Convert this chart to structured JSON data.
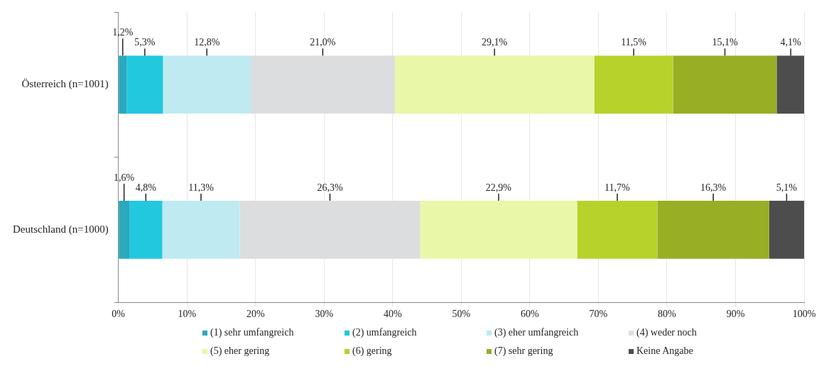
{
  "chart_data": {
    "type": "bar",
    "orientation": "horizontal",
    "stacked": true,
    "categories": [
      "Österreich (n=1001)",
      "Deutschland (n=1000)"
    ],
    "series": [
      {
        "name": "(1) sehr umfangreich",
        "color": "#2aa8bd",
        "values": [
          1.2,
          1.6
        ],
        "value_labels": [
          "1,2%",
          "1,6%"
        ]
      },
      {
        "name": "(2) umfangreich",
        "color": "#22c8de",
        "values": [
          5.3,
          4.8
        ],
        "value_labels": [
          "5,3%",
          "4,8%"
        ]
      },
      {
        "name": "(3) eher umfangreich",
        "color": "#bfeaf2",
        "values": [
          12.8,
          11.3
        ],
        "value_labels": [
          "12,8%",
          "11,3%"
        ]
      },
      {
        "name": "(4) weder noch",
        "color": "#dcdddf",
        "values": [
          21.0,
          26.3
        ],
        "value_labels": [
          "21,0%",
          "26,3%"
        ]
      },
      {
        "name": "(5) eher gering",
        "color": "#e9f7a8",
        "values": [
          29.1,
          22.9
        ],
        "value_labels": [
          "29,1%",
          "22,9%"
        ]
      },
      {
        "name": "(6) gering",
        "color": "#b6d22b",
        "values": [
          11.5,
          11.7
        ],
        "value_labels": [
          "11,5%",
          "11,7%"
        ]
      },
      {
        "name": "(7) sehr gering",
        "color": "#97ae25",
        "values": [
          15.1,
          16.3
        ],
        "value_labels": [
          "15,1%",
          "16,3%"
        ]
      },
      {
        "name": "Keine Angabe",
        "color": "#4d4d4d",
        "values": [
          4.1,
          5.1
        ],
        "value_labels": [
          "4,1%",
          "5,1%"
        ]
      }
    ],
    "xlim": [
      0,
      100
    ],
    "xticks": [
      {
        "value": 0,
        "label": "0%"
      },
      {
        "value": 10,
        "label": "10%"
      },
      {
        "value": 20,
        "label": "20%"
      },
      {
        "value": 30,
        "label": "30%"
      },
      {
        "value": 40,
        "label": "40%"
      },
      {
        "value": 50,
        "label": "50%"
      },
      {
        "value": 60,
        "label": "60%"
      },
      {
        "value": 70,
        "label": "70%"
      },
      {
        "value": 80,
        "label": "80%"
      },
      {
        "value": 90,
        "label": "90%"
      },
      {
        "value": 100,
        "label": "100%"
      }
    ],
    "grid": "x",
    "legend": "bottom"
  }
}
